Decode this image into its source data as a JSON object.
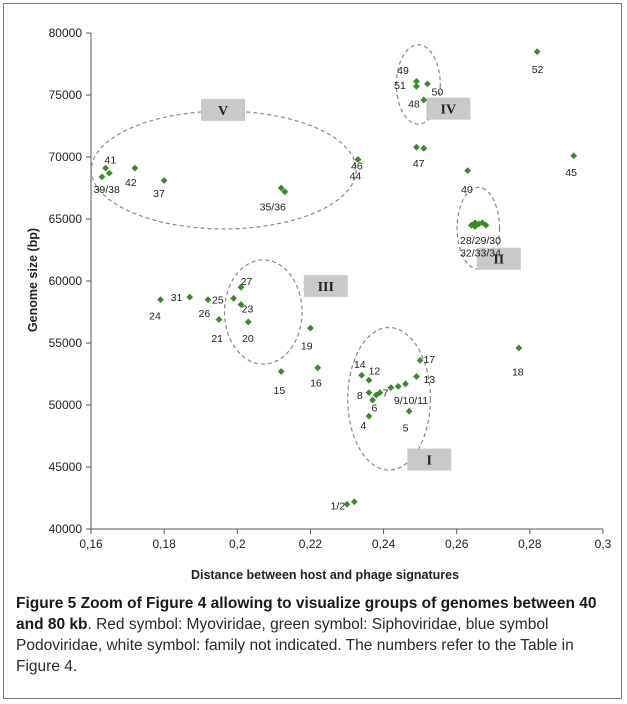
{
  "chart_data": {
    "type": "scatter",
    "xlabel": "Distance between host and phage signatures",
    "ylabel": "Genome size (bp)",
    "xlim": [
      0.16,
      0.3
    ],
    "ylim": [
      40000,
      80000
    ],
    "x_ticks": [
      "0,16",
      "0,18",
      "0,2",
      "0,22",
      "0,24",
      "0,26",
      "0,28",
      "0,3"
    ],
    "y_ticks": [
      "40000",
      "45000",
      "50000",
      "55000",
      "60000",
      "65000",
      "70000",
      "75000",
      "80000"
    ],
    "marker_color": "#3a8a2a",
    "points": [
      {
        "x": 0.23,
        "y": 42000
      },
      {
        "x": 0.232,
        "y": 42200
      },
      {
        "x": 0.236,
        "y": 49100
      },
      {
        "x": 0.247,
        "y": 49500
      },
      {
        "x": 0.237,
        "y": 50400
      },
      {
        "x": 0.238,
        "y": 50800
      },
      {
        "x": 0.239,
        "y": 51000
      },
      {
        "x": 0.236,
        "y": 51000
      },
      {
        "x": 0.242,
        "y": 51400
      },
      {
        "x": 0.244,
        "y": 51500
      },
      {
        "x": 0.246,
        "y": 51700
      },
      {
        "x": 0.236,
        "y": 52000
      },
      {
        "x": 0.249,
        "y": 52300
      },
      {
        "x": 0.234,
        "y": 52400
      },
      {
        "x": 0.222,
        "y": 53000
      },
      {
        "x": 0.212,
        "y": 52700
      },
      {
        "x": 0.25,
        "y": 53600
      },
      {
        "x": 0.277,
        "y": 54600
      },
      {
        "x": 0.22,
        "y": 56200
      },
      {
        "x": 0.195,
        "y": 56900
      },
      {
        "x": 0.203,
        "y": 56700
      },
      {
        "x": 0.179,
        "y": 58500
      },
      {
        "x": 0.187,
        "y": 58700
      },
      {
        "x": 0.192,
        "y": 58500
      },
      {
        "x": 0.199,
        "y": 58600
      },
      {
        "x": 0.201,
        "y": 58100
      },
      {
        "x": 0.201,
        "y": 59500
      },
      {
        "x": 0.264,
        "y": 64500
      },
      {
        "x": 0.265,
        "y": 64700
      },
      {
        "x": 0.266,
        "y": 64600
      },
      {
        "x": 0.267,
        "y": 64700
      },
      {
        "x": 0.268,
        "y": 64500
      },
      {
        "x": 0.265,
        "y": 64400
      },
      {
        "x": 0.212,
        "y": 67500
      },
      {
        "x": 0.213,
        "y": 67200
      },
      {
        "x": 0.163,
        "y": 68400
      },
      {
        "x": 0.165,
        "y": 68700
      },
      {
        "x": 0.164,
        "y": 69100
      },
      {
        "x": 0.172,
        "y": 69100
      },
      {
        "x": 0.18,
        "y": 68100
      },
      {
        "x": 0.233,
        "y": 69800
      },
      {
        "x": 0.263,
        "y": 68900
      },
      {
        "x": 0.292,
        "y": 70100
      },
      {
        "x": 0.249,
        "y": 70800
      },
      {
        "x": 0.251,
        "y": 70700
      },
      {
        "x": 0.249,
        "y": 76100
      },
      {
        "x": 0.249,
        "y": 75700
      },
      {
        "x": 0.251,
        "y": 74600
      },
      {
        "x": 0.252,
        "y": 75900
      },
      {
        "x": 0.282,
        "y": 78500
      }
    ],
    "point_labels": [
      {
        "text": "1/2",
        "x": 0.2275,
        "y": 41900
      },
      {
        "text": "4",
        "x": 0.2345,
        "y": 48400
      },
      {
        "text": "5",
        "x": 0.246,
        "y": 48200
      },
      {
        "text": "6",
        "x": 0.2375,
        "y": 49800
      },
      {
        "text": "7",
        "x": 0.2405,
        "y": 51000
      },
      {
        "text": "8",
        "x": 0.2335,
        "y": 50800
      },
      {
        "text": "9/10/11",
        "x": 0.2475,
        "y": 50400
      },
      {
        "text": "12",
        "x": 0.2375,
        "y": 52800
      },
      {
        "text": "13",
        "x": 0.2525,
        "y": 52100
      },
      {
        "text": "14",
        "x": 0.2335,
        "y": 53300
      },
      {
        "text": "15",
        "x": 0.2115,
        "y": 51200
      },
      {
        "text": "16",
        "x": 0.2215,
        "y": 51800
      },
      {
        "text": "17",
        "x": 0.2525,
        "y": 53700
      },
      {
        "text": "18",
        "x": 0.2767,
        "y": 52700
      },
      {
        "text": "19",
        "x": 0.219,
        "y": 54800
      },
      {
        "text": "20",
        "x": 0.2029,
        "y": 55400
      },
      {
        "text": "21",
        "x": 0.1945,
        "y": 55400
      },
      {
        "text": "23",
        "x": 0.2028,
        "y": 57800
      },
      {
        "text": "24",
        "x": 0.1775,
        "y": 57200
      },
      {
        "text": "25",
        "x": 0.1947,
        "y": 58500
      },
      {
        "text": "26",
        "x": 0.191,
        "y": 57400
      },
      {
        "text": "27",
        "x": 0.2025,
        "y": 60000
      },
      {
        "text": "28/29/30",
        "x": 0.2665,
        "y": 63300
      },
      {
        "text": "31",
        "x": 0.1834,
        "y": 58700
      },
      {
        "text": "32/33/34",
        "x": 0.2665,
        "y": 62300
      },
      {
        "text": "35/36",
        "x": 0.2097,
        "y": 66000
      },
      {
        "text": "37",
        "x": 0.1786,
        "y": 67100
      },
      {
        "text": "39/38",
        "x": 0.1643,
        "y": 67400
      },
      {
        "text": "40",
        "x": 0.2628,
        "y": 67400
      },
      {
        "text": "41",
        "x": 0.1653,
        "y": 69800
      },
      {
        "text": "42",
        "x": 0.1709,
        "y": 68000
      },
      {
        "text": "44",
        "x": 0.2323,
        "y": 68500
      },
      {
        "text": "45",
        "x": 0.2913,
        "y": 68800
      },
      {
        "text": "46",
        "x": 0.2327,
        "y": 69300
      },
      {
        "text": "47",
        "x": 0.2496,
        "y": 69500
      },
      {
        "text": "48",
        "x": 0.2483,
        "y": 74300
      },
      {
        "text": "49",
        "x": 0.2453,
        "y": 77000
      },
      {
        "text": "50",
        "x": 0.2547,
        "y": 75300
      },
      {
        "text": "51",
        "x": 0.2445,
        "y": 75800
      },
      {
        "text": "52",
        "x": 0.2821,
        "y": 77100
      }
    ],
    "groups": [
      {
        "label": "I",
        "label_x": 0.2525,
        "label_y": 45600,
        "ellipse": {
          "cx": 0.2415,
          "cy": 50500,
          "rx": 0.0113,
          "ry": 5750
        }
      },
      {
        "label": "II",
        "label_x": 0.2715,
        "label_y": 61800,
        "ellipse": {
          "cx": 0.2659,
          "cy": 64250,
          "rx": 0.0058,
          "ry": 3300
        }
      },
      {
        "label": "III",
        "label_x": 0.2242,
        "label_y": 59600,
        "ellipse": {
          "cx": 0.2071,
          "cy": 57500,
          "rx": 0.0106,
          "ry": 4200
        }
      },
      {
        "label": "IV",
        "label_x": 0.2577,
        "label_y": 73900,
        "ellipse": {
          "cx": 0.2495,
          "cy": 75850,
          "rx": 0.006,
          "ry": 3200
        }
      },
      {
        "label": "V",
        "label_x": 0.1961,
        "label_y": 73800,
        "ellipse": {
          "cx": 0.1963,
          "cy": 68950,
          "rx": 0.0362,
          "ry": 4750
        }
      }
    ]
  },
  "caption": {
    "figure_label": "Figure 5",
    "figure_title": "Zoom of Figure 4 allowing to visualize groups of genomes between 40 and 80 kb",
    "text": ". Red symbol: Myoviridae, green symbol: Siphoviridae, blue symbol Podoviridae, white symbol: family not indicated. The numbers refer to the Table in Figure 4."
  }
}
